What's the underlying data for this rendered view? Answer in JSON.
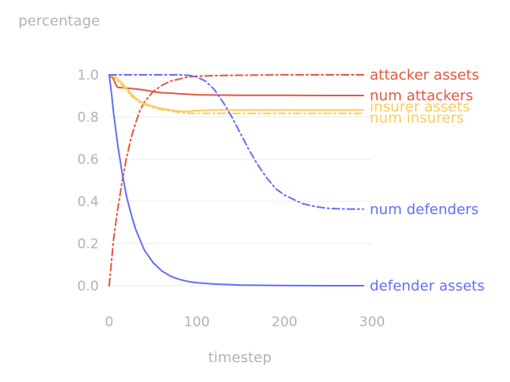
{
  "chart_data": {
    "type": "line",
    "ylabel": "percentage",
    "xlabel": "timestep",
    "xlim": [
      0,
      300
    ],
    "ylim": [
      -0.1,
      1.1
    ],
    "xticks": [
      0,
      100,
      200,
      300
    ],
    "xtick_labels": [
      "0",
      "100",
      "200",
      "300"
    ],
    "yticks": [
      0.0,
      0.2,
      0.4,
      0.6,
      0.8,
      1.0
    ],
    "ytick_labels": [
      "0.0",
      "0.2",
      "0.4",
      "0.6",
      "0.8",
      "1.0"
    ],
    "grid": "horizontal",
    "legend": "right-end labels",
    "series": [
      {
        "name": "attacker assets",
        "color": "#e8553d",
        "dash": "dashdot",
        "x": [
          0,
          3,
          5,
          10,
          15,
          20,
          25,
          30,
          35,
          40,
          50,
          60,
          70,
          80,
          90,
          100,
          120,
          150,
          200,
          250,
          290
        ],
        "y": [
          0.0,
          0.13,
          0.22,
          0.37,
          0.5,
          0.61,
          0.7,
          0.77,
          0.83,
          0.87,
          0.92,
          0.95,
          0.97,
          0.98,
          0.99,
          0.993,
          0.996,
          0.998,
          1.0,
          1.0,
          1.0
        ]
      },
      {
        "name": "num attackers",
        "color": "#e8553d",
        "dash": "solid",
        "x": [
          0,
          5,
          8,
          10,
          20,
          30,
          40,
          50,
          60,
          70,
          80,
          90,
          100,
          150,
          200,
          250,
          290
        ],
        "y": [
          1.0,
          0.98,
          0.95,
          0.94,
          0.937,
          0.933,
          0.928,
          0.92,
          0.915,
          0.913,
          0.91,
          0.908,
          0.905,
          0.903,
          0.903,
          0.902,
          0.902
        ]
      },
      {
        "name": "insurer assets",
        "color": "#fbcb5a",
        "dash": "solid",
        "x": [
          0,
          5,
          10,
          15,
          20,
          25,
          30,
          35,
          40,
          50,
          60,
          70,
          80,
          90,
          100,
          120,
          150,
          200,
          250,
          290
        ],
        "y": [
          1.0,
          0.995,
          0.98,
          0.96,
          0.935,
          0.91,
          0.89,
          0.875,
          0.865,
          0.85,
          0.84,
          0.833,
          0.828,
          0.827,
          0.83,
          0.833,
          0.833,
          0.833,
          0.833,
          0.833
        ]
      },
      {
        "name": "num insurers",
        "color": "#fbcb5a",
        "dash": "dashdot",
        "x": [
          0,
          5,
          10,
          15,
          20,
          25,
          30,
          35,
          40,
          50,
          60,
          70,
          80,
          90,
          100,
          150,
          200,
          250,
          290
        ],
        "y": [
          1.0,
          0.99,
          0.97,
          0.95,
          0.925,
          0.9,
          0.885,
          0.87,
          0.86,
          0.845,
          0.835,
          0.828,
          0.822,
          0.818,
          0.817,
          0.817,
          0.817,
          0.817,
          0.817
        ]
      },
      {
        "name": "num defenders",
        "color": "#636efa",
        "dash": "dashdot",
        "x": [
          0,
          20,
          40,
          60,
          80,
          90,
          100,
          110,
          120,
          130,
          140,
          150,
          160,
          170,
          180,
          190,
          200,
          210,
          220,
          230,
          240,
          250,
          260,
          270,
          280,
          290
        ],
        "y": [
          1.0,
          1.0,
          1.0,
          1.0,
          1.0,
          0.998,
          0.99,
          0.97,
          0.93,
          0.87,
          0.8,
          0.72,
          0.64,
          0.57,
          0.51,
          0.46,
          0.43,
          0.41,
          0.39,
          0.38,
          0.372,
          0.367,
          0.365,
          0.364,
          0.363,
          0.363
        ]
      },
      {
        "name": "defender assets",
        "color": "#636efa",
        "dash": "solid",
        "x": [
          0,
          3,
          5,
          10,
          15,
          20,
          25,
          30,
          35,
          40,
          50,
          60,
          70,
          80,
          90,
          100,
          120,
          150,
          200,
          250,
          290
        ],
        "y": [
          1.0,
          0.9,
          0.82,
          0.66,
          0.53,
          0.42,
          0.34,
          0.27,
          0.22,
          0.17,
          0.11,
          0.07,
          0.045,
          0.03,
          0.02,
          0.014,
          0.008,
          0.003,
          0.001,
          0.0,
          0.0
        ]
      }
    ]
  }
}
